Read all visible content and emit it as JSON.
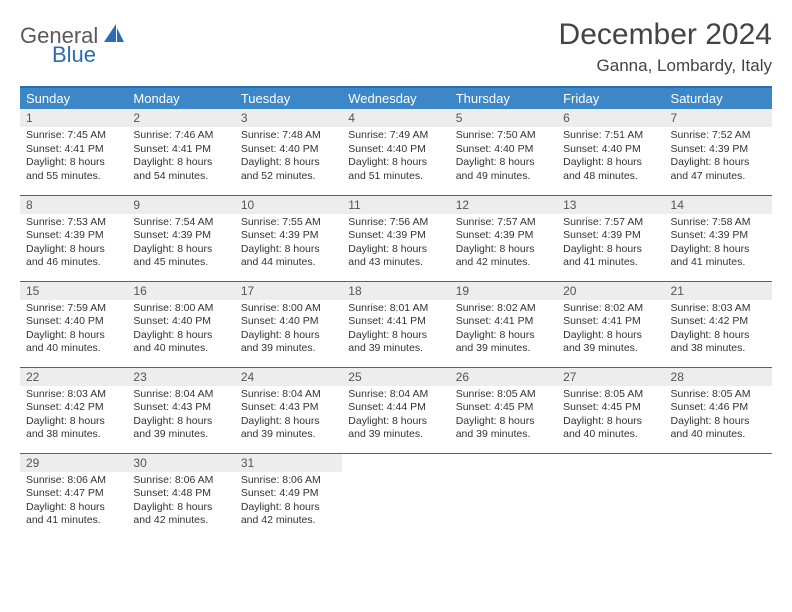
{
  "logo": {
    "word1": "General",
    "word2": "Blue"
  },
  "title": "December 2024",
  "location": "Ganna, Lombardy, Italy",
  "colors": {
    "header_bg": "#3b87c8",
    "border": "#2a6db3",
    "daynum_bg": "#ededed",
    "text": "#333333"
  },
  "weekday_labels": [
    "Sunday",
    "Monday",
    "Tuesday",
    "Wednesday",
    "Thursday",
    "Friday",
    "Saturday"
  ],
  "weeks": [
    [
      {
        "n": "1",
        "sr": "7:45 AM",
        "ss": "4:41 PM",
        "dl": "8 hours and 55 minutes."
      },
      {
        "n": "2",
        "sr": "7:46 AM",
        "ss": "4:41 PM",
        "dl": "8 hours and 54 minutes."
      },
      {
        "n": "3",
        "sr": "7:48 AM",
        "ss": "4:40 PM",
        "dl": "8 hours and 52 minutes."
      },
      {
        "n": "4",
        "sr": "7:49 AM",
        "ss": "4:40 PM",
        "dl": "8 hours and 51 minutes."
      },
      {
        "n": "5",
        "sr": "7:50 AM",
        "ss": "4:40 PM",
        "dl": "8 hours and 49 minutes."
      },
      {
        "n": "6",
        "sr": "7:51 AM",
        "ss": "4:40 PM",
        "dl": "8 hours and 48 minutes."
      },
      {
        "n": "7",
        "sr": "7:52 AM",
        "ss": "4:39 PM",
        "dl": "8 hours and 47 minutes."
      }
    ],
    [
      {
        "n": "8",
        "sr": "7:53 AM",
        "ss": "4:39 PM",
        "dl": "8 hours and 46 minutes."
      },
      {
        "n": "9",
        "sr": "7:54 AM",
        "ss": "4:39 PM",
        "dl": "8 hours and 45 minutes."
      },
      {
        "n": "10",
        "sr": "7:55 AM",
        "ss": "4:39 PM",
        "dl": "8 hours and 44 minutes."
      },
      {
        "n": "11",
        "sr": "7:56 AM",
        "ss": "4:39 PM",
        "dl": "8 hours and 43 minutes."
      },
      {
        "n": "12",
        "sr": "7:57 AM",
        "ss": "4:39 PM",
        "dl": "8 hours and 42 minutes."
      },
      {
        "n": "13",
        "sr": "7:57 AM",
        "ss": "4:39 PM",
        "dl": "8 hours and 41 minutes."
      },
      {
        "n": "14",
        "sr": "7:58 AM",
        "ss": "4:39 PM",
        "dl": "8 hours and 41 minutes."
      }
    ],
    [
      {
        "n": "15",
        "sr": "7:59 AM",
        "ss": "4:40 PM",
        "dl": "8 hours and 40 minutes."
      },
      {
        "n": "16",
        "sr": "8:00 AM",
        "ss": "4:40 PM",
        "dl": "8 hours and 40 minutes."
      },
      {
        "n": "17",
        "sr": "8:00 AM",
        "ss": "4:40 PM",
        "dl": "8 hours and 39 minutes."
      },
      {
        "n": "18",
        "sr": "8:01 AM",
        "ss": "4:41 PM",
        "dl": "8 hours and 39 minutes."
      },
      {
        "n": "19",
        "sr": "8:02 AM",
        "ss": "4:41 PM",
        "dl": "8 hours and 39 minutes."
      },
      {
        "n": "20",
        "sr": "8:02 AM",
        "ss": "4:41 PM",
        "dl": "8 hours and 39 minutes."
      },
      {
        "n": "21",
        "sr": "8:03 AM",
        "ss": "4:42 PM",
        "dl": "8 hours and 38 minutes."
      }
    ],
    [
      {
        "n": "22",
        "sr": "8:03 AM",
        "ss": "4:42 PM",
        "dl": "8 hours and 38 minutes."
      },
      {
        "n": "23",
        "sr": "8:04 AM",
        "ss": "4:43 PM",
        "dl": "8 hours and 39 minutes."
      },
      {
        "n": "24",
        "sr": "8:04 AM",
        "ss": "4:43 PM",
        "dl": "8 hours and 39 minutes."
      },
      {
        "n": "25",
        "sr": "8:04 AM",
        "ss": "4:44 PM",
        "dl": "8 hours and 39 minutes."
      },
      {
        "n": "26",
        "sr": "8:05 AM",
        "ss": "4:45 PM",
        "dl": "8 hours and 39 minutes."
      },
      {
        "n": "27",
        "sr": "8:05 AM",
        "ss": "4:45 PM",
        "dl": "8 hours and 40 minutes."
      },
      {
        "n": "28",
        "sr": "8:05 AM",
        "ss": "4:46 PM",
        "dl": "8 hours and 40 minutes."
      }
    ],
    [
      {
        "n": "29",
        "sr": "8:06 AM",
        "ss": "4:47 PM",
        "dl": "8 hours and 41 minutes."
      },
      {
        "n": "30",
        "sr": "8:06 AM",
        "ss": "4:48 PM",
        "dl": "8 hours and 42 minutes."
      },
      {
        "n": "31",
        "sr": "8:06 AM",
        "ss": "4:49 PM",
        "dl": "8 hours and 42 minutes."
      },
      null,
      null,
      null,
      null
    ]
  ],
  "labels": {
    "sunrise": "Sunrise:",
    "sunset": "Sunset:",
    "daylight": "Daylight:"
  }
}
